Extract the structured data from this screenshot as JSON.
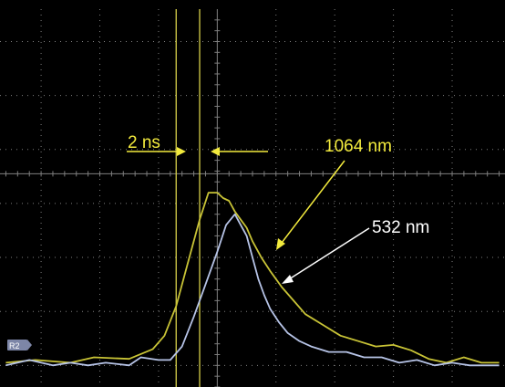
{
  "colors": {
    "screen_bg": "#000000",
    "grid": "#7f7f7f",
    "trace_1064": "#c8c336",
    "trace_532": "#b6c3e6",
    "cursor": "#d6d04a",
    "annotation_yellow": "#f2ea3d",
    "annotation_white": "#ffffff",
    "ref_marker_bg": "#7d86a7"
  },
  "screen": {
    "ref_marker_label": "R2"
  },
  "annotations": {
    "time_label": "2 ns",
    "label_1064": "1064 nm",
    "label_532": "532 nm"
  },
  "chart_data": {
    "type": "line",
    "xlabel": "",
    "ylabel": "",
    "grid": true,
    "x_unit": "ns",
    "y_unit": "relative",
    "xlim": [
      -7.4,
      9.8
    ],
    "ylim": [
      -0.4,
      6.6
    ],
    "x_grid_spacing_ns": 2,
    "vertical_cursors_ns": [
      -1.4,
      -0.6
    ],
    "series": [
      {
        "name": "1064 nm",
        "x": [
          -7.2,
          -6.2,
          -5.0,
          -4.2,
          -3.0,
          -2.2,
          -1.8,
          -1.4,
          -1.0,
          -0.6,
          -0.3,
          0.0,
          0.2,
          0.4,
          0.6,
          0.8,
          1.0,
          1.2,
          1.5,
          1.8,
          2.2,
          2.6,
          3.0,
          3.6,
          4.2,
          4.8,
          5.4,
          6.0,
          6.6,
          7.2,
          7.8,
          8.4,
          9.0,
          9.6
        ],
        "y": [
          0.05,
          0.1,
          0.05,
          0.15,
          0.12,
          0.3,
          0.55,
          1.1,
          1.9,
          2.7,
          3.2,
          3.2,
          3.1,
          3.05,
          2.85,
          2.7,
          2.55,
          2.3,
          2.0,
          1.75,
          1.45,
          1.2,
          0.95,
          0.75,
          0.55,
          0.45,
          0.35,
          0.38,
          0.28,
          0.12,
          0.05,
          0.15,
          0.05,
          0.05
        ]
      },
      {
        "name": "532 nm",
        "x": [
          -7.2,
          -6.4,
          -5.6,
          -5.0,
          -4.4,
          -3.8,
          -3.0,
          -2.6,
          -2.0,
          -1.6,
          -1.2,
          -0.8,
          -0.4,
          0.0,
          0.3,
          0.6,
          0.8,
          1.0,
          1.2,
          1.4,
          1.6,
          1.8,
          2.1,
          2.4,
          2.8,
          3.2,
          3.8,
          4.4,
          5.0,
          5.6,
          6.2,
          6.8,
          7.4,
          8.0,
          8.6,
          9.2,
          9.6
        ],
        "y": [
          0.0,
          0.1,
          0.0,
          0.05,
          0.0,
          0.05,
          0.0,
          0.15,
          0.1,
          0.1,
          0.35,
          0.9,
          1.5,
          2.1,
          2.6,
          2.8,
          2.6,
          2.4,
          2.0,
          1.6,
          1.3,
          1.05,
          0.8,
          0.6,
          0.45,
          0.35,
          0.25,
          0.25,
          0.15,
          0.15,
          0.05,
          0.1,
          0.0,
          0.05,
          0.0,
          0.0,
          0.0
        ]
      }
    ]
  }
}
